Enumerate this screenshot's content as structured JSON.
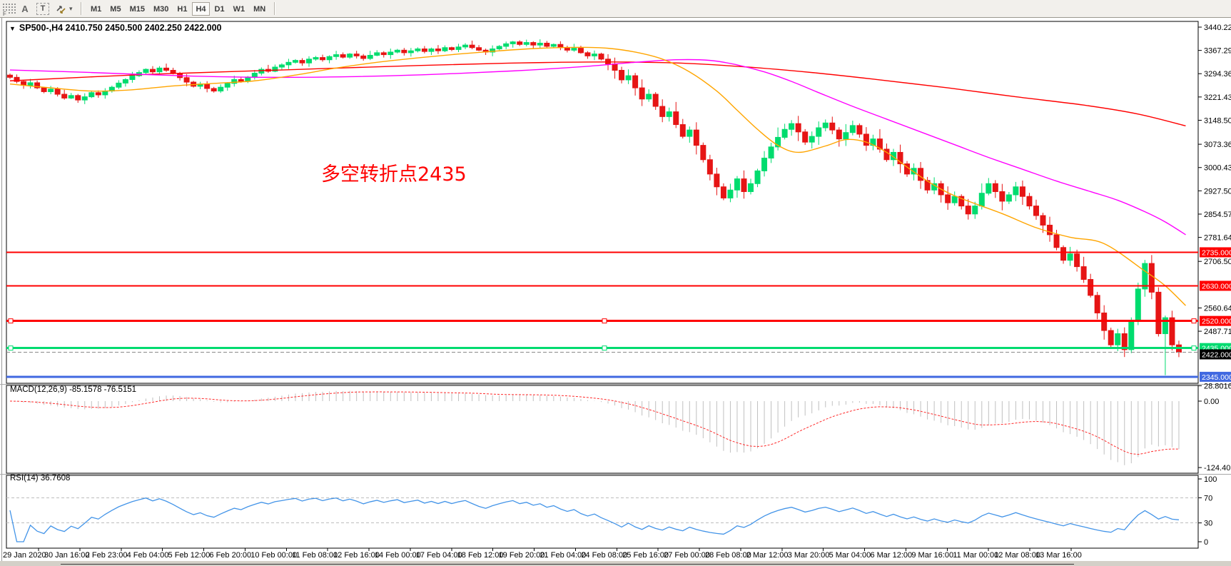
{
  "toolbar": {
    "tools": [
      {
        "label": "F"
      },
      {
        "label": "A"
      },
      {
        "label": "T"
      },
      {
        "label": ""
      },
      {
        "label": "▾"
      }
    ],
    "timeframes": [
      {
        "label": "M1",
        "active": false
      },
      {
        "label": "M5",
        "active": false
      },
      {
        "label": "M15",
        "active": false
      },
      {
        "label": "M30",
        "active": false
      },
      {
        "label": "H1",
        "active": false
      },
      {
        "label": "H4",
        "active": true
      },
      {
        "label": "D1",
        "active": false
      },
      {
        "label": "W1",
        "active": false
      },
      {
        "label": "MN",
        "active": false
      }
    ]
  },
  "header": {
    "collapse_arrow": "▼",
    "title": "SP500-,H4  2410.750 2450.500 2402.250 2422.000"
  },
  "annotation": {
    "text": "多空转折点2435",
    "color": "#ff0000"
  },
  "chart_data": {
    "type": "candlestick",
    "symbol": "SP500-",
    "timeframe": "H4",
    "ohlc_current": {
      "open": 2410.75,
      "high": 2450.5,
      "low": 2402.25,
      "close": 2422.0
    },
    "price_range": {
      "max": 3458.1,
      "min": 2324.7
    },
    "price_axis_labels": [
      "3440.220",
      "3367.290",
      "3294.360",
      "3221.430",
      "3148.500",
      "3073.360",
      "3000.430",
      "2927.500",
      "2854.570",
      "2781.640",
      "2706.500",
      "2560.640",
      "2487.710"
    ],
    "price_levels": [
      {
        "price": 2735,
        "label": "2735.000",
        "color": "#ff0000",
        "width": 2,
        "selected": false
      },
      {
        "price": 2630,
        "label": "2630.000",
        "color": "#ff0000",
        "width": 2,
        "selected": false
      },
      {
        "price": 2520,
        "label": "2520.000",
        "color": "#ff0000",
        "width": 3,
        "selected": true
      },
      {
        "price": 2435,
        "label": "2435.000",
        "color": "#00db70",
        "width": 3,
        "selected": true
      },
      {
        "price": 2345,
        "label": "2345.000",
        "color": "#4169e1",
        "width": 3,
        "selected": false
      }
    ],
    "current_price": {
      "price": 2422,
      "label": "2422.000",
      "line_color": "#8a8a8a",
      "box_color": "#000000"
    },
    "candles": {
      "first_open": 3290,
      "closes": [
        3283,
        3270,
        3258,
        3266,
        3250,
        3238,
        3246,
        3230,
        3218,
        3226,
        3212,
        3222,
        3235,
        3228,
        3240,
        3252,
        3265,
        3276,
        3288,
        3298,
        3308,
        3300,
        3312,
        3305,
        3295,
        3282,
        3268,
        3255,
        3262,
        3248,
        3240,
        3252,
        3264,
        3276,
        3270,
        3284,
        3296,
        3308,
        3302,
        3315,
        3322,
        3330,
        3336,
        3328,
        3340,
        3345,
        3338,
        3348,
        3354,
        3346,
        3356,
        3350,
        3342,
        3352,
        3360,
        3354,
        3362,
        3368,
        3360,
        3366,
        3372,
        3364,
        3372,
        3366,
        3376,
        3370,
        3378,
        3384,
        3376,
        3368,
        3362,
        3372,
        3380,
        3388,
        3394,
        3386,
        3392,
        3384,
        3390,
        3380,
        3386,
        3376,
        3368,
        3374,
        3360,
        3350,
        3356,
        3340,
        3325,
        3305,
        3275,
        3288,
        3250,
        3215,
        3230,
        3192,
        3160,
        3175,
        3135,
        3098,
        3118,
        3070,
        3025,
        2980,
        2940,
        2905,
        2930,
        2965,
        2925,
        2950,
        2990,
        3030,
        3065,
        3095,
        3120,
        3138,
        3112,
        3080,
        3098,
        3125,
        3140,
        3118,
        3090,
        3110,
        3132,
        3105,
        3070,
        3090,
        3058,
        3025,
        3048,
        3012,
        2980,
        2998,
        2960,
        2930,
        2950,
        2915,
        2890,
        2910,
        2880,
        2855,
        2880,
        2920,
        2950,
        2925,
        2895,
        2915,
        2940,
        2910,
        2880,
        2850,
        2820,
        2790,
        2750,
        2710,
        2730,
        2690,
        2650,
        2600,
        2545,
        2490,
        2445,
        2480,
        2430,
        2520,
        2620,
        2700,
        2610,
        2480,
        2530,
        2445,
        2422
      ],
      "wick_high_pattern": [
        5,
        9,
        4,
        12,
        7,
        3,
        10,
        6,
        14,
        8,
        5,
        11,
        4,
        7,
        9
      ],
      "wick_low_pattern": [
        8,
        4,
        11,
        5,
        9,
        13,
        3,
        7,
        5,
        10,
        6,
        12,
        4,
        9,
        5
      ],
      "volatility_boost_from_index": 88,
      "volatility_boost_factor": 2.2,
      "overrides": {
        "74": {
          "high": 3397
        },
        "105": {
          "low": 2898
        },
        "164": {
          "low": 2407
        },
        "167": {
          "high": 2711
        },
        "170": {
          "low": 2350
        }
      }
    },
    "moving_averages": [
      {
        "name": "ma-slow",
        "color": "#ff0000",
        "points": [
          [
            0,
            3272
          ],
          [
            20,
            3292
          ],
          [
            40,
            3306
          ],
          [
            60,
            3320
          ],
          [
            75,
            3328
          ],
          [
            88,
            3331
          ],
          [
            98,
            3328
          ],
          [
            108,
            3316
          ],
          [
            118,
            3298
          ],
          [
            128,
            3275
          ],
          [
            138,
            3250
          ],
          [
            148,
            3222
          ],
          [
            158,
            3196
          ],
          [
            166,
            3168
          ],
          [
            173,
            3131
          ]
        ]
      },
      {
        "name": "ma-medium",
        "color": "#ff00ff",
        "points": [
          [
            0,
            3306
          ],
          [
            12,
            3298
          ],
          [
            25,
            3288
          ],
          [
            38,
            3283
          ],
          [
            50,
            3285
          ],
          [
            62,
            3292
          ],
          [
            74,
            3303
          ],
          [
            84,
            3316
          ],
          [
            92,
            3330
          ],
          [
            98,
            3338
          ],
          [
            103,
            3336
          ],
          [
            107,
            3322
          ],
          [
            111,
            3300
          ],
          [
            115,
            3270
          ],
          [
            119,
            3235
          ],
          [
            124,
            3192
          ],
          [
            129,
            3152
          ],
          [
            134,
            3112
          ],
          [
            139,
            3072
          ],
          [
            144,
            3032
          ],
          [
            149,
            2995
          ],
          [
            154,
            2958
          ],
          [
            159,
            2925
          ],
          [
            163,
            2898
          ],
          [
            167,
            2862
          ],
          [
            170,
            2830
          ],
          [
            173,
            2790
          ]
        ]
      },
      {
        "name": "ma-fast",
        "color": "#ffa500",
        "points": [
          [
            0,
            3262
          ],
          [
            6,
            3250
          ],
          [
            12,
            3240
          ],
          [
            18,
            3244
          ],
          [
            24,
            3256
          ],
          [
            30,
            3264
          ],
          [
            36,
            3272
          ],
          [
            42,
            3290
          ],
          [
            48,
            3312
          ],
          [
            54,
            3330
          ],
          [
            60,
            3344
          ],
          [
            66,
            3356
          ],
          [
            72,
            3366
          ],
          [
            78,
            3374
          ],
          [
            84,
            3377
          ],
          [
            88,
            3374
          ],
          [
            92,
            3362
          ],
          [
            96,
            3340
          ],
          [
            100,
            3300
          ],
          [
            104,
            3240
          ],
          [
            107,
            3180
          ],
          [
            110,
            3120
          ],
          [
            113,
            3070
          ],
          [
            116,
            3048
          ],
          [
            120,
            3068
          ],
          [
            123,
            3088
          ],
          [
            126,
            3080
          ],
          [
            129,
            3048
          ],
          [
            132,
            3002
          ],
          [
            135,
            2958
          ],
          [
            139,
            2912
          ],
          [
            146,
            2856
          ],
          [
            151,
            2812
          ],
          [
            156,
            2782
          ],
          [
            161,
            2762
          ],
          [
            167,
            2676
          ],
          [
            170,
            2630
          ],
          [
            173,
            2568
          ]
        ]
      }
    ],
    "macd": {
      "label": "MACD(12,26,9) -85.1578 -76.5151",
      "fast": 12,
      "slow": 26,
      "signal": 9,
      "value_main": -85.1578,
      "value_signal": -76.5151,
      "axis_labels": [
        {
          "v": 28.8016,
          "text": "28.8016"
        },
        {
          "v": 0,
          "text": "0.00"
        },
        {
          "v": -124.4011,
          "text": "-124.4011"
        }
      ],
      "range": {
        "max": 29.4,
        "min": -135
      },
      "scale_min": -124.4011
    },
    "rsi": {
      "label": "RSI(14) 36.7608",
      "period": 14,
      "value": 36.7608,
      "axis_labels": [
        {
          "v": 100,
          "text": "100"
        },
        {
          "v": 70,
          "text": "70"
        },
        {
          "v": 30,
          "text": "30"
        },
        {
          "v": 0,
          "text": "0"
        }
      ],
      "levels": [
        70,
        30
      ],
      "range": {
        "max": 105.7,
        "min": -10.2
      }
    },
    "time_axis": [
      "29 Jan 2020",
      "30 Jan 16:00",
      "2 Feb 23:00",
      "4 Feb 04:00",
      "5 Feb 12:00",
      "6 Feb 20:00",
      "10 Feb 00:00",
      "11 Feb 08:00",
      "12 Feb 16:00",
      "14 Feb 00:00",
      "17 Feb 04:00",
      "18 Feb 12:00",
      "19 Feb 20:00",
      "21 Feb 04:00",
      "24 Feb 08:00",
      "25 Feb 16:00",
      "27 Feb 00:00",
      "28 Feb 08:00",
      "2 Mar 12:00",
      "3 Mar 20:00",
      "5 Mar 04:00",
      "6 Mar 12:00",
      "9 Mar 16:00",
      "11 Mar 00:00",
      "12 Mar 08:00",
      "13 Mar 16:00"
    ],
    "colors": {
      "up": "#00dc6e",
      "down": "#e61515",
      "histogram": "#c0c0c0",
      "macd_signal": "#ff2a2a",
      "rsi_line": "#4394e8",
      "level_dash": "#bdbdbd",
      "axis_text": "#000000"
    }
  }
}
